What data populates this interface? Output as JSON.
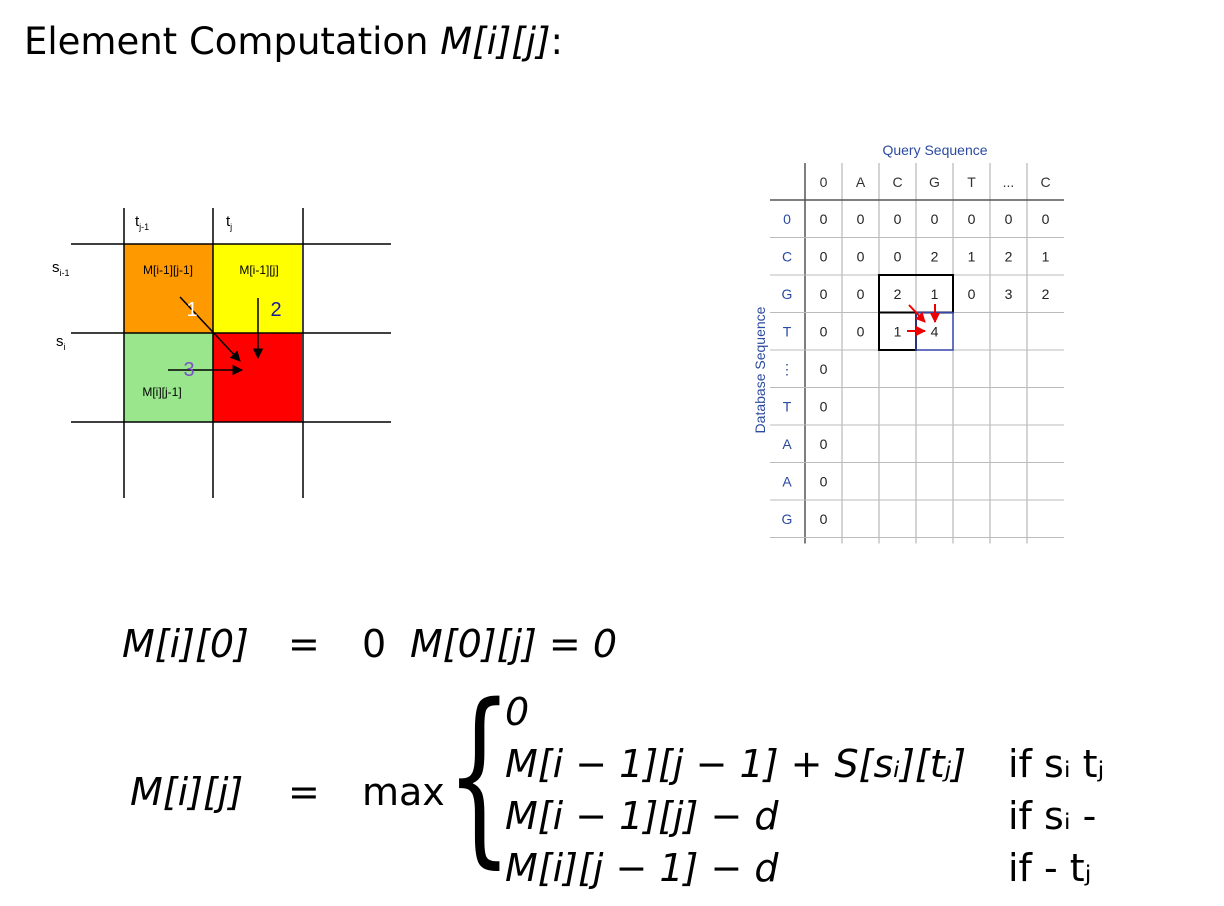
{
  "title": {
    "text": "Element Computation",
    "math": "M[i][j]",
    "suffix": ":"
  },
  "left_diagram": {
    "col_labels": [
      {
        "main": "t",
        "sub": "j-1"
      },
      {
        "main": "t",
        "sub": "j"
      }
    ],
    "row_labels": [
      {
        "main": "s",
        "sub": "i-1"
      },
      {
        "main": "s",
        "sub": "i"
      }
    ],
    "cells": [
      "M[i-1][j-1]",
      "M[i-1][j]",
      "M[i][j-1]"
    ],
    "arrows": [
      "1",
      "2",
      "3"
    ]
  },
  "right_table": {
    "title": "Query Sequence",
    "side_label": "Database Sequence",
    "header": [
      "0",
      "A",
      "C",
      "G",
      "T",
      "...",
      "C"
    ],
    "rows": [
      {
        "label": "0",
        "cells": [
          "0",
          "0",
          "0",
          "0",
          "0",
          "0",
          "0"
        ]
      },
      {
        "label": "C",
        "cells": [
          "0",
          "0",
          "0",
          "2",
          "1",
          "2",
          "1"
        ]
      },
      {
        "label": "G",
        "cells": [
          "0",
          "0",
          "2",
          "1",
          "0",
          "3",
          "2"
        ]
      },
      {
        "label": "T",
        "cells": [
          "0",
          "0",
          "1",
          "4"
        ]
      },
      {
        "label": "⋮",
        "cells": [
          "0"
        ]
      },
      {
        "label": "T",
        "cells": [
          "0"
        ]
      },
      {
        "label": "A",
        "cells": [
          "0"
        ]
      },
      {
        "label": "A",
        "cells": [
          "0"
        ]
      },
      {
        "label": "G",
        "cells": [
          "0"
        ]
      }
    ]
  },
  "equations": {
    "line1": {
      "lhs": "M[i][0]",
      "eq": "=",
      "rhs": "0",
      "extra": "M[0][j] = 0"
    },
    "line2": {
      "lhs": "M[i][j]",
      "eq": "=",
      "op": "max",
      "cases": [
        {
          "expr": "0"
        },
        {
          "expr": "M[i − 1][j − 1] + S[sᵢ][tⱼ]",
          "cond": "if sᵢ tⱼ"
        },
        {
          "expr": "M[i − 1][j] − d",
          "cond": "if sᵢ -"
        },
        {
          "expr": "M[i][j − 1] − d",
          "cond": "if - tⱼ"
        }
      ]
    }
  }
}
